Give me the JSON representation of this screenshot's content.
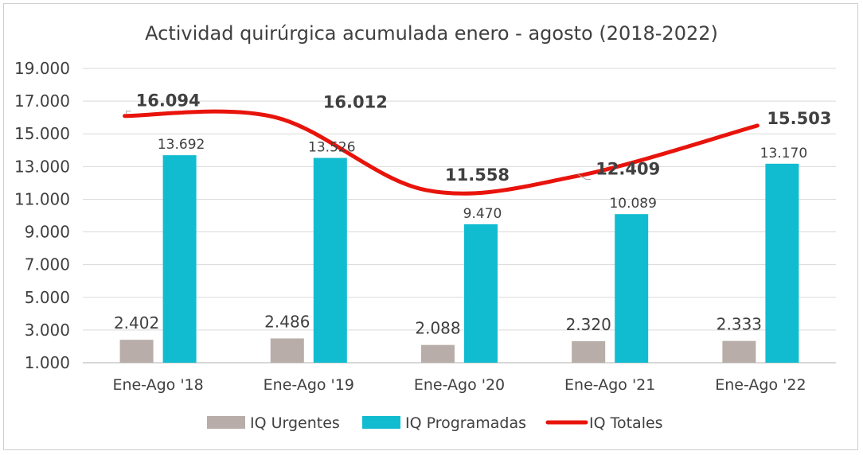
{
  "chart_data": {
    "type": "bar",
    "title": "Actividad quirúrgica acumulada enero - agosto (2018-2022)",
    "categories": [
      "Ene-Ago '18",
      "Ene-Ago '19",
      "Ene-Ago '20",
      "Ene-Ago '21",
      "Ene-Ago '22"
    ],
    "ylim": [
      1000,
      19000
    ],
    "yticks": [
      {
        "value": 1000,
        "label": "1.000"
      },
      {
        "value": 3000,
        "label": "3.000"
      },
      {
        "value": 5000,
        "label": "5.000"
      },
      {
        "value": 7000,
        "label": "7.000"
      },
      {
        "value": 9000,
        "label": "9.000"
      },
      {
        "value": 11000,
        "label": "11.000"
      },
      {
        "value": 13000,
        "label": "13.000"
      },
      {
        "value": 15000,
        "label": "15.000"
      },
      {
        "value": 17000,
        "label": "17.000"
      },
      {
        "value": 19000,
        "label": "19.000"
      }
    ],
    "grid": true,
    "legend_position": "bottom",
    "series": [
      {
        "name": "IQ Urgentes",
        "kind": "bar",
        "color": "#b8ada8",
        "values": [
          2402,
          2486,
          2088,
          2320,
          2333
        ],
        "labels": [
          "2.402",
          "2.486",
          "2.088",
          "2.320",
          "2.333"
        ]
      },
      {
        "name": "IQ Programadas",
        "kind": "bar",
        "color": "#12bcd0",
        "values": [
          13692,
          13526,
          9470,
          10089,
          13170
        ],
        "labels": [
          "13.692",
          "13.526",
          "9.470",
          "10.089",
          "13.170"
        ]
      },
      {
        "name": "IQ Totales",
        "kind": "line",
        "smooth": true,
        "color": "#e8140c",
        "values": [
          16094,
          16012,
          11558,
          12409,
          15503
        ],
        "labels": [
          "16.094",
          "16.012",
          "11.558",
          "12.409",
          "15.503"
        ]
      }
    ]
  }
}
